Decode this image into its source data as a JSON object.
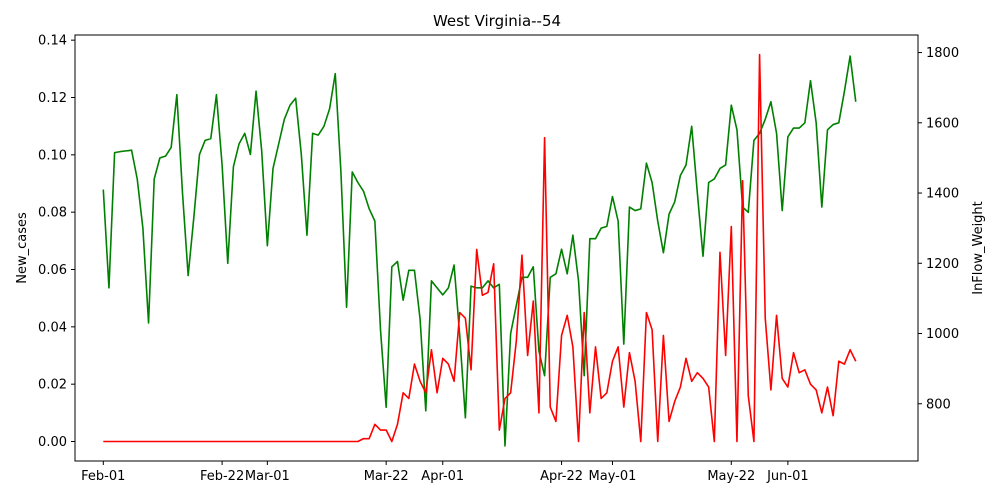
{
  "chart_data": {
    "type": "line",
    "title": "West Virginia--54",
    "xlabel": "",
    "ylabel": "New_cases",
    "y2label": "InFlow_Weight",
    "ylim": [
      -0.0068,
      0.1418
    ],
    "y2lim": [
      637,
      1850
    ],
    "yticks": [
      0.0,
      0.02,
      0.04,
      0.06,
      0.08,
      0.1,
      0.12,
      0.14
    ],
    "ytick_labels": [
      "0.00",
      "0.02",
      "0.04",
      "0.06",
      "0.08",
      "0.10",
      "0.12",
      "0.14"
    ],
    "y2ticks": [
      800,
      1000,
      1200,
      1400,
      1600,
      1800
    ],
    "y2tick_labels": [
      "800",
      "1000",
      "1200",
      "1400",
      "1600",
      "1800"
    ],
    "xlim": [
      "2020-01-27",
      "2020-06-24"
    ],
    "xticks": [
      "2020-02-01",
      "2020-02-22",
      "2020-03-01",
      "2020-03-22",
      "2020-04-01",
      "2020-04-22",
      "2020-05-01",
      "2020-05-22",
      "2020-06-01"
    ],
    "xtick_labels": [
      "Feb-01",
      "Feb-22",
      "Mar-01",
      "Mar-22",
      "Apr-01",
      "Apr-22",
      "May-01",
      "May-22",
      "Jun-01"
    ],
    "x_start": "2020-02-01",
    "grid": false,
    "series": [
      {
        "axis": "right",
        "color": "#008000",
        "values": [
          1410,
          1130,
          1515,
          1518,
          1520,
          1522,
          1440,
          1300,
          1030,
          1440,
          1500,
          1505,
          1530,
          1680,
          1400,
          1165,
          1330,
          1510,
          1550,
          1555,
          1680,
          1480,
          1200,
          1475,
          1540,
          1570,
          1510,
          1690,
          1520,
          1250,
          1470,
          1540,
          1610,
          1650,
          1670,
          1510,
          1280,
          1570,
          1565,
          1590,
          1640,
          1740,
          1460,
          1075,
          1460,
          1430,
          1405,
          1355,
          1320,
          1010,
          790,
          1190,
          1205,
          1095,
          1180,
          1180,
          1040,
          780,
          1150,
          1130,
          1110,
          1130,
          1195,
          995,
          760,
          1135,
          1130,
          1130,
          1150,
          1130,
          1140,
          680,
          1000,
          1080,
          1160,
          1160,
          1190,
          950,
          880,
          1160,
          1170,
          1240,
          1170,
          1280,
          1150,
          880,
          1270,
          1270,
          1300,
          1305,
          1390,
          1320,
          970,
          1360,
          1350,
          1355,
          1485,
          1430,
          1320,
          1230,
          1340,
          1375,
          1450,
          1480,
          1590,
          1400,
          1220,
          1430,
          1440,
          1470,
          1480,
          1650,
          1580,
          1360,
          1345,
          1550,
          1570,
          1610,
          1660,
          1570,
          1350,
          1560,
          1585,
          1585,
          1600,
          1720,
          1600,
          1360,
          1580,
          1595,
          1600,
          1690,
          1790,
          1660
        ]
      },
      {
        "axis": "left",
        "color": "#ff0000",
        "values": [
          0,
          0,
          0,
          0,
          0,
          0,
          0,
          0,
          0,
          0,
          0,
          0,
          0,
          0,
          0,
          0,
          0,
          0,
          0,
          0,
          0,
          0,
          0,
          0,
          0,
          0,
          0,
          0,
          0,
          0,
          0,
          0,
          0,
          0,
          0,
          0,
          0,
          0,
          0,
          0,
          0,
          0,
          0,
          0,
          0,
          0,
          0.001,
          0.001,
          0.006,
          0.004,
          0.004,
          0,
          0.006,
          0.017,
          0.015,
          0.027,
          0.021,
          0.017,
          0.032,
          0.017,
          0.029,
          0.027,
          0.021,
          0.045,
          0.043,
          0.025,
          0.067,
          0.051,
          0.052,
          0.062,
          0.004,
          0.015,
          0.017,
          0.035,
          0.065,
          0.03,
          0.049,
          0.01,
          0.106,
          0.012,
          0.007,
          0.037,
          0.044,
          0.033,
          0,
          0.045,
          0.01,
          0.033,
          0.015,
          0.017,
          0.028,
          0.033,
          0.012,
          0.031,
          0.021,
          0,
          0.045,
          0.039,
          0,
          0.037,
          0.007,
          0.014,
          0.019,
          0.029,
          0.021,
          0.024,
          0.022,
          0.019,
          0,
          0.066,
          0.03,
          0.075,
          0,
          0.091,
          0.016,
          0,
          0.135,
          0.043,
          0.018,
          0.044,
          0.022,
          0.019,
          0.031,
          0.024,
          0.025,
          0.02,
          0.018,
          0.01,
          0.019,
          0.009,
          0.028,
          0.027,
          0.032,
          0.028
        ]
      }
    ]
  }
}
